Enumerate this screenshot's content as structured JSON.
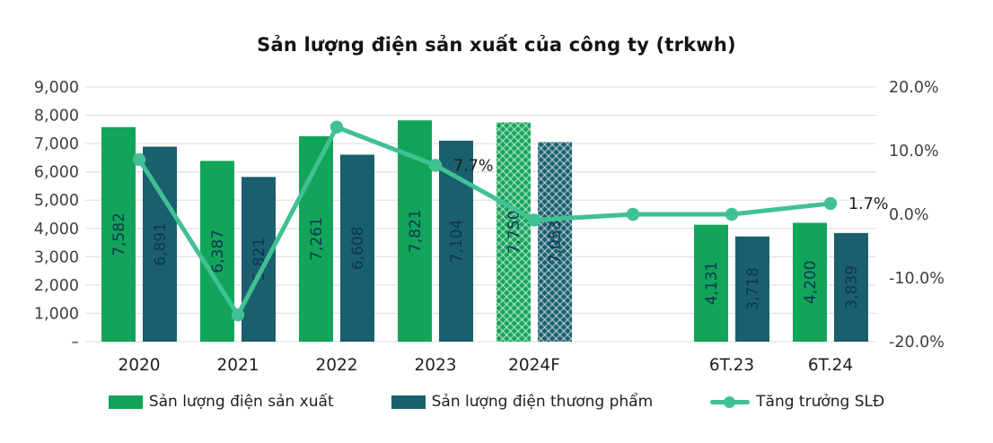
{
  "title": "Sản lượng điện sản xuất của công ty (trkwh)",
  "chart_data": {
    "type": "bar",
    "subtype": "combo-bar-line",
    "title": "Sản lượng điện sản xuất của công ty (trkwh)",
    "categories": [
      "2020",
      "2021",
      "2022",
      "2023",
      "2024F",
      "",
      "6T.23",
      "6T.24"
    ],
    "series": [
      {
        "name": "Sản lượng điện sản xuất",
        "type": "bar",
        "axis": "left",
        "color": "#12a459",
        "values": [
          7582,
          6387,
          7261,
          7821,
          7750,
          null,
          4131,
          4200
        ],
        "hatched": [
          false,
          false,
          false,
          false,
          true,
          false,
          false,
          false
        ]
      },
      {
        "name": "Sản lượng điện thương phẩm",
        "type": "bar",
        "axis": "left",
        "color": "#1a5f6e",
        "values": [
          6891,
          5821,
          6608,
          7104,
          7053,
          null,
          3718,
          3839
        ],
        "hatched": [
          false,
          false,
          false,
          false,
          true,
          false,
          false,
          false
        ]
      },
      {
        "name": "Tăng trưởng SLĐ",
        "type": "line",
        "axis": "right",
        "color": "#40c193",
        "values": [
          8.6,
          -15.8,
          13.7,
          7.7,
          -0.9,
          0.0,
          0.0,
          1.7
        ]
      }
    ],
    "point_labels": [
      {
        "category_index": 3,
        "text": "7.7%"
      },
      {
        "category_index": 7,
        "text": "1.7%"
      }
    ],
    "left_axis": {
      "min": 0,
      "max": 9000,
      "tick_step": 1000,
      "tick_labels": [
        "9,000",
        "8,000",
        "7,000",
        "6,000",
        "5,000",
        "4,000",
        "3,000",
        "2,000",
        "1,000",
        "–"
      ]
    },
    "right_axis": {
      "min": -20,
      "max": 20,
      "tick_step": 10,
      "tick_labels": [
        "20.0%",
        "10.0%",
        "0.0%",
        "-10.0%",
        "-20.0%"
      ]
    },
    "grid": true,
    "legend_position": "bottom"
  },
  "legend": {
    "items": [
      {
        "label": "Sản lượng điện sản xuất",
        "swatch": "bar",
        "color": "#12a459"
      },
      {
        "label": "Sản lượng điện thương phẩm",
        "swatch": "bar",
        "color": "#1a5f6e"
      },
      {
        "label": "Tăng trưởng SLĐ",
        "swatch": "line-marker",
        "color": "#40c193"
      }
    ]
  },
  "colors": {
    "background": "#ffffff",
    "grid": "#e3e3e3",
    "axis_text": "#3f3f3f",
    "category_text": "#1f1f1f",
    "bar_label_text": "#0e3552",
    "annotation_text": "#1b1b1b",
    "title_text": "#141414"
  }
}
